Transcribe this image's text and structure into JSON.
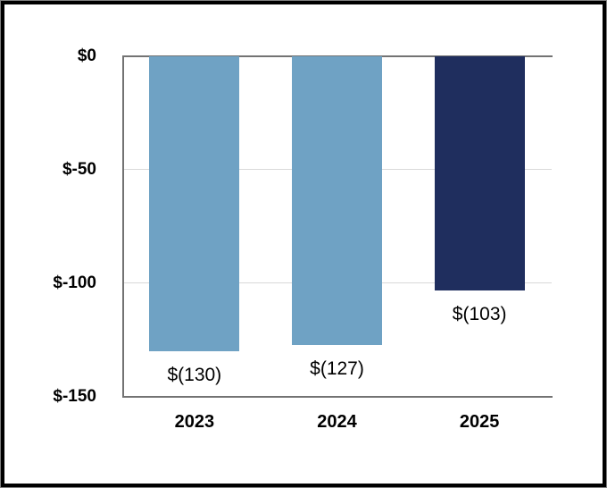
{
  "chart_data": {
    "type": "bar",
    "categories": [
      "2023",
      "2024",
      "2025"
    ],
    "values": [
      -130,
      -127,
      -103
    ],
    "data_labels": [
      "$(130)",
      "$(127)",
      "$(103)"
    ],
    "yticks": [
      "$0",
      "$-50",
      "$-100",
      "$-150"
    ],
    "ytick_values": [
      0,
      -50,
      -100,
      -150
    ],
    "ylim": [
      -150,
      0
    ],
    "bar_colors": [
      "#6FA2C4",
      "#6FA2C4",
      "#1F2E5E"
    ],
    "legend": "none",
    "grid": "on",
    "orientation": "vertical-negative"
  },
  "colors": {
    "bar_light_blue": "#6FA2C4",
    "bar_navy": "#1F2E5E",
    "axis_line": "#737373",
    "gridline": "#D9D9D9",
    "frame_border": "#000000",
    "text": "#000000"
  }
}
